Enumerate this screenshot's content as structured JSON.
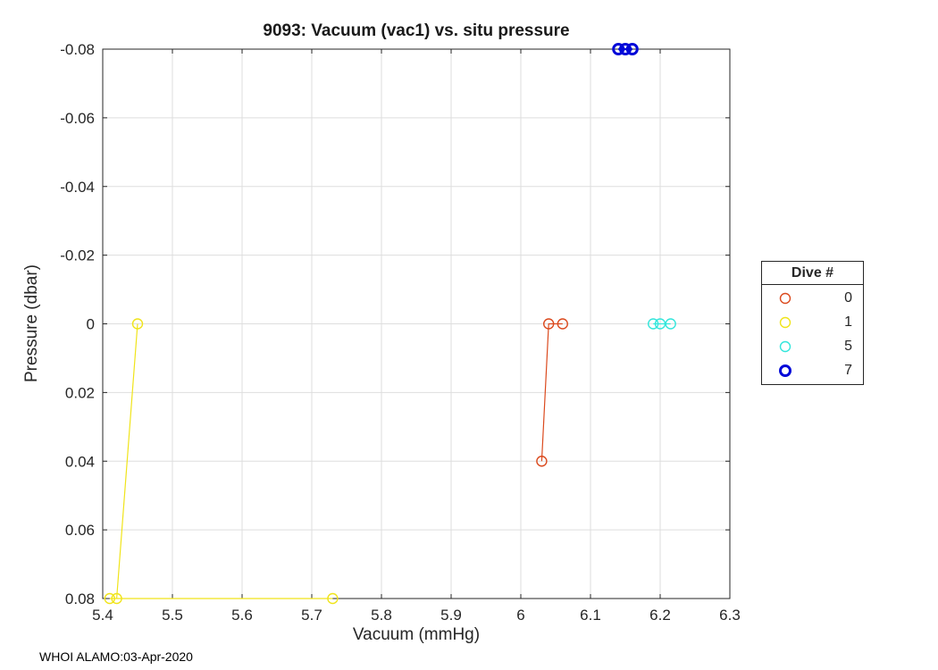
{
  "footer": "WHOI ALAMO:03-Apr-2020",
  "chart_data": {
    "type": "scatter",
    "title": "9093: Vacuum (vac1) vs. situ pressure",
    "xlabel": "Vacuum (mmHg)",
    "ylabel": "Pressure (dbar)",
    "xlim": [
      5.4,
      6.3
    ],
    "ylim": [
      -0.08,
      0.08
    ],
    "y_axis_reversed": true,
    "grid": true,
    "axis_color": "#262626",
    "grid_color": "#dedede",
    "xticks": [
      5.4,
      5.5,
      5.6,
      5.7,
      5.8,
      5.9,
      6.0,
      6.1,
      6.2,
      6.3
    ],
    "xtick_labels": [
      "5.4",
      "5.5",
      "5.6",
      "5.7",
      "5.8",
      "5.9",
      "6",
      "6.1",
      "6.2",
      "6.3"
    ],
    "yticks": [
      -0.08,
      -0.06,
      -0.04,
      -0.02,
      0,
      0.02,
      0.04,
      0.06,
      0.08
    ],
    "ytick_labels": [
      "-0.08",
      "-0.06",
      "-0.04",
      "-0.02",
      "0",
      "0.02",
      "0.04",
      "0.06",
      "0.08"
    ],
    "legend": {
      "title": "Dive #",
      "position": "right-outside"
    },
    "series": [
      {
        "name": "0",
        "color": "#DB4A1E",
        "line_width": 1.2,
        "marker_radius": 5.5,
        "marker_stroke": 1.4,
        "points": [
          [
            6.03,
            0.04
          ],
          [
            6.04,
            0.0
          ],
          [
            6.06,
            0.0
          ]
        ]
      },
      {
        "name": "1",
        "color": "#F0E41A",
        "line_width": 1.2,
        "marker_radius": 5.5,
        "marker_stroke": 1.4,
        "points": [
          [
            5.45,
            0.0
          ],
          [
            5.42,
            0.08
          ],
          [
            5.41,
            0.08
          ],
          [
            5.73,
            0.08
          ]
        ]
      },
      {
        "name": "5",
        "color": "#33E6DB",
        "line_width": 1.2,
        "marker_radius": 5.5,
        "marker_stroke": 1.4,
        "points": [
          [
            6.19,
            0.0
          ],
          [
            6.2,
            0.0
          ],
          [
            6.215,
            0.0
          ]
        ]
      },
      {
        "name": "7",
        "color": "#0008D8",
        "line_width": 2.5,
        "marker_radius": 5.5,
        "marker_stroke": 3,
        "points": [
          [
            6.14,
            -0.08
          ],
          [
            6.15,
            -0.08
          ],
          [
            6.16,
            -0.08
          ]
        ]
      }
    ]
  }
}
